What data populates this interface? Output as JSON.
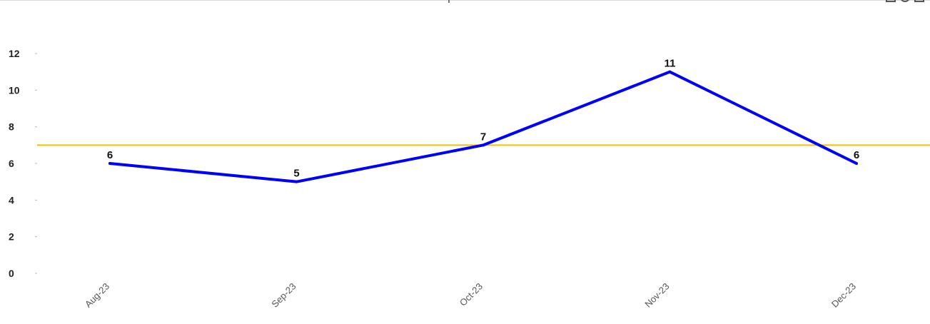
{
  "chart_data": {
    "type": "line",
    "categories": [
      "Aug-23",
      "Sep-23",
      "Oct-23",
      "Nov-23",
      "Dec-23"
    ],
    "series": [
      {
        "values": [
          6,
          5,
          7,
          11,
          6
        ],
        "color": "#0000ff"
      }
    ],
    "reference_line": {
      "value": 7,
      "color": "#f2c000"
    },
    "title": "",
    "xlabel": "",
    "ylabel": "",
    "ylim": [
      0,
      12
    ],
    "yticks": [
      "0",
      "2",
      "4",
      "6",
      "8",
      "10",
      "12"
    ],
    "grid": false,
    "data_labels": [
      "6",
      "5",
      "7",
      "11",
      "6"
    ]
  },
  "toolbar": {
    "icons": [
      "export-icon",
      "info-icon",
      "menu-icon"
    ]
  }
}
